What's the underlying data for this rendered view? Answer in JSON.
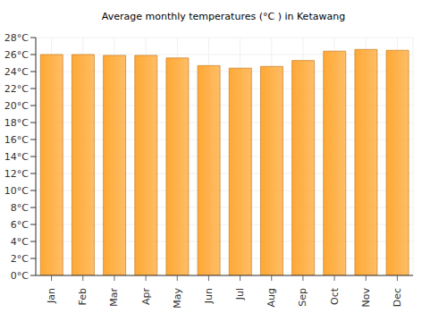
{
  "chart_data": {
    "type": "bar",
    "title": "Average monthly temperatures (°C ) in Ketawang",
    "categories": [
      "Jan",
      "Feb",
      "Mar",
      "Apr",
      "May",
      "Jun",
      "Jul",
      "Aug",
      "Sep",
      "Oct",
      "Nov",
      "Dec"
    ],
    "values": [
      26.0,
      26.0,
      25.9,
      25.9,
      25.6,
      24.7,
      24.4,
      24.6,
      25.3,
      26.4,
      26.6,
      26.5
    ],
    "color": "#ffa834",
    "ylim": [
      0,
      28
    ],
    "yticks": [
      {
        "value": 0,
        "label": "0°C"
      },
      {
        "value": 2,
        "label": "2°C"
      },
      {
        "value": 4,
        "label": "4°C"
      },
      {
        "value": 6,
        "label": "6°C"
      },
      {
        "value": 8,
        "label": "8°C"
      },
      {
        "value": 10,
        "label": "10°C"
      },
      {
        "value": 12,
        "label": "12°C"
      },
      {
        "value": 14,
        "label": "14°C"
      },
      {
        "value": 16,
        "label": "16°C"
      },
      {
        "value": 18,
        "label": "18°C"
      },
      {
        "value": 20,
        "label": "20°C"
      },
      {
        "value": 22,
        "label": "22°C"
      },
      {
        "value": 24,
        "label": "24°C"
      },
      {
        "value": 26,
        "label": "26°C"
      },
      {
        "value": 28,
        "label": "28°C"
      }
    ],
    "grid": true
  }
}
